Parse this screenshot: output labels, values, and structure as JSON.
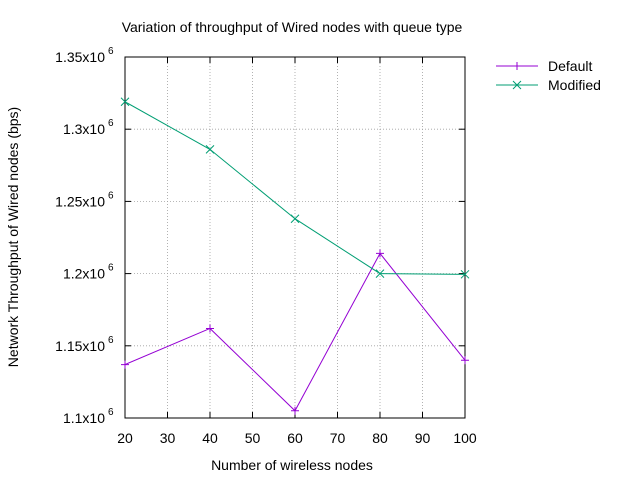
{
  "chart_data": {
    "type": "line",
    "title": "Variation of throughput of Wired nodes with queue type",
    "xlabel": "Number of wireless nodes",
    "ylabel": "Network Throughput of Wired nodes (bps)",
    "xlim": [
      20,
      100
    ],
    "ylim": [
      1100000,
      1350000
    ],
    "x_ticks": [
      20,
      30,
      40,
      50,
      60,
      70,
      80,
      90,
      100
    ],
    "x_tick_labels": [
      "20",
      "30",
      "40",
      "50",
      "60",
      "70",
      "80",
      "90",
      "100"
    ],
    "y_ticks": [
      1100000,
      1150000,
      1200000,
      1250000,
      1300000,
      1350000
    ],
    "y_tick_labels": [
      {
        "mant": "1.1x10",
        "exp": "6"
      },
      {
        "mant": "1.15x10",
        "exp": "6"
      },
      {
        "mant": "1.2x10",
        "exp": "6"
      },
      {
        "mant": "1.25x10",
        "exp": "6"
      },
      {
        "mant": "1.3x10",
        "exp": "6"
      },
      {
        "mant": "1.35x10",
        "exp": "6"
      }
    ],
    "grid": true,
    "legend_position": "outside-top-right",
    "series": [
      {
        "name": "Default",
        "color": "#9400d3",
        "marker": "plus",
        "x": [
          20,
          40,
          60,
          80,
          100
        ],
        "y": [
          1137000,
          1162000,
          1105000,
          1214000,
          1140000
        ]
      },
      {
        "name": "Modified",
        "color": "#009e73",
        "marker": "cross",
        "x": [
          20,
          40,
          60,
          80,
          100
        ],
        "y": [
          1319000,
          1286000,
          1238000,
          1200000,
          1199500
        ]
      }
    ]
  }
}
